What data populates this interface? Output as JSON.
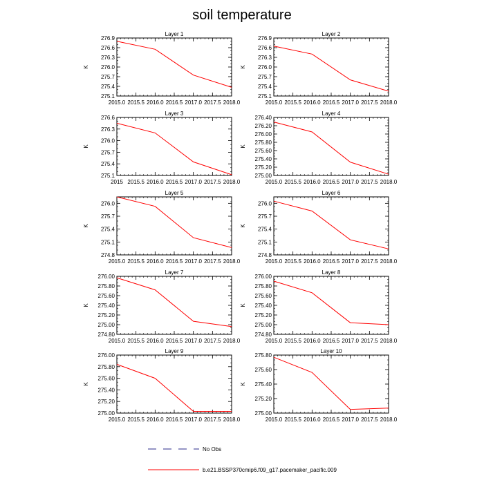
{
  "title": "soil temperature",
  "legend": {
    "obs_label": "No Obs",
    "model_label": "b.e21.BSSP370cmip6.f09_g17.pacemaker_pacific.009",
    "model_color": "#ff0000",
    "obs_color": "#2a2a8a"
  },
  "chart_data": [
    {
      "type": "line",
      "title": "Layer 1",
      "ylabel": "K",
      "x": [
        2015,
        2016,
        2017,
        2018
      ],
      "values": [
        276.8,
        276.55,
        275.75,
        275.37
      ],
      "xlim": [
        2015,
        2018
      ],
      "ylim": [
        275.1,
        276.9
      ],
      "xticks": [
        "2015.0",
        "2015.5",
        "2016.0",
        "2016.5",
        "2017.0",
        "2017.5",
        "2018.0"
      ],
      "yticks": [
        "276.9",
        "276.6",
        "276.3",
        "276.0",
        "275.7",
        "275.4",
        "275.1"
      ],
      "series_name": "b.e21.BSSP370cmip6.f09_g17.pacemaker_pacific.009"
    },
    {
      "type": "line",
      "title": "Layer 2",
      "ylabel": "K",
      "x": [
        2015,
        2016,
        2017,
        2018
      ],
      "values": [
        276.65,
        276.4,
        275.6,
        275.25
      ],
      "xlim": [
        2015,
        2018
      ],
      "ylim": [
        275.1,
        276.9
      ],
      "xticks": [
        "2015.0",
        "2015.5",
        "2016.0",
        "2016.5",
        "2017.0",
        "2017.5",
        "2018.0"
      ],
      "yticks": [
        "276.9",
        "276.6",
        "276.3",
        "276.0",
        "275.7",
        "275.4",
        "275.1"
      ],
      "series_name": "b.e21.BSSP370cmip6.f09_g17.pacemaker_pacific.009"
    },
    {
      "type": "line",
      "title": "Layer 3",
      "ylabel": "K",
      "x": [
        2015,
        2016,
        2017,
        2018
      ],
      "values": [
        276.45,
        276.2,
        275.45,
        275.12
      ],
      "xlim": [
        2015,
        2018
      ],
      "ylim": [
        275.1,
        276.6
      ],
      "xticks": [
        "2015",
        "2015.5",
        "2016.0",
        "2016.5",
        "2017.0",
        "2017.5",
        "2018.0"
      ],
      "yticks": [
        "276.6",
        "276.3",
        "276.0",
        "275.7",
        "275.4",
        "275.1"
      ],
      "series_name": "b.e21.BSSP370cmip6.f09_g17.pacemaker_pacific.009"
    },
    {
      "type": "line",
      "title": "Layer 4",
      "ylabel": "K",
      "x": [
        2015,
        2016,
        2017,
        2018
      ],
      "values": [
        276.29,
        276.05,
        275.32,
        275.03
      ],
      "xlim": [
        2015,
        2018
      ],
      "ylim": [
        275.0,
        276.4
      ],
      "xticks": [
        "2015.0",
        "2015.5",
        "2016.0",
        "2016.5",
        "2017.0",
        "2017.5",
        "2018.0"
      ],
      "yticks": [
        "276.40",
        "276.20",
        "276.00",
        "275.80",
        "275.60",
        "275.40",
        "275.20",
        "275.00"
      ],
      "series_name": "b.e21.BSSP370cmip6.f09_g17.pacemaker_pacific.009"
    },
    {
      "type": "line",
      "title": "Layer 5",
      "ylabel": "K",
      "x": [
        2015,
        2016,
        2017,
        2018
      ],
      "values": [
        276.15,
        275.93,
        275.2,
        274.97
      ],
      "xlim": [
        2015,
        2018
      ],
      "ylim": [
        274.8,
        276.15
      ],
      "xticks": [
        "2015.0",
        "2015.5",
        "2016.0",
        "2016.5",
        "2017.0",
        "2017.5",
        "2018.0"
      ],
      "yticks": [
        "276.0",
        "275.7",
        "275.4",
        "275.1",
        "274.8"
      ],
      "series_name": "b.e21.BSSP370cmip6.f09_g17.pacemaker_pacific.009"
    },
    {
      "type": "line",
      "title": "Layer 6",
      "ylabel": "K",
      "x": [
        2015,
        2016,
        2017,
        2018
      ],
      "values": [
        276.05,
        275.82,
        275.15,
        274.94
      ],
      "xlim": [
        2015,
        2018
      ],
      "ylim": [
        274.8,
        276.15
      ],
      "xticks": [
        "2015.0",
        "2015.5",
        "2016.0",
        "2016.5",
        "2017.0",
        "2017.5",
        "2018.0"
      ],
      "yticks": [
        "276.0",
        "275.7",
        "275.4",
        "275.1",
        "274.8"
      ],
      "series_name": "b.e21.BSSP370cmip6.f09_g17.pacemaker_pacific.009"
    },
    {
      "type": "line",
      "title": "Layer 7",
      "ylabel": "K",
      "x": [
        2015,
        2016,
        2017,
        2018
      ],
      "values": [
        275.97,
        275.72,
        275.07,
        274.96
      ],
      "xlim": [
        2015,
        2018
      ],
      "ylim": [
        274.8,
        276.0
      ],
      "xticks": [
        "2015.0",
        "2015.5",
        "2016.0",
        "2016.5",
        "2017.0",
        "2017.5",
        "2018.0"
      ],
      "yticks": [
        "276.00",
        "275.80",
        "275.60",
        "275.40",
        "275.20",
        "275.00",
        "274.80"
      ],
      "series_name": "b.e21.BSSP370cmip6.f09_g17.pacemaker_pacific.009"
    },
    {
      "type": "line",
      "title": "Layer 8",
      "ylabel": "K",
      "x": [
        2015,
        2016,
        2017,
        2018
      ],
      "values": [
        275.9,
        275.66,
        275.04,
        275.0
      ],
      "xlim": [
        2015,
        2018
      ],
      "ylim": [
        274.8,
        276.0
      ],
      "xticks": [
        "2015.0",
        "2015.5",
        "2016.0",
        "2016.5",
        "2017.0",
        "2017.5",
        "2018.0"
      ],
      "yticks": [
        "276.00",
        "275.80",
        "275.60",
        "275.40",
        "275.20",
        "275.00",
        "274.80"
      ],
      "series_name": "b.e21.BSSP370cmip6.f09_g17.pacemaker_pacific.009"
    },
    {
      "type": "line",
      "title": "Layer 9",
      "ylabel": "K",
      "x": [
        2015,
        2016,
        2017,
        2018
      ],
      "values": [
        275.84,
        275.6,
        275.03,
        275.03
      ],
      "xlim": [
        2015,
        2018
      ],
      "ylim": [
        275.0,
        276.0
      ],
      "xticks": [
        "2015.0",
        "2015.5",
        "2016.0",
        "2016.5",
        "2017.0",
        "2017.5",
        "2018.0"
      ],
      "yticks": [
        "276.00",
        "275.80",
        "275.60",
        "275.40",
        "275.20",
        "275.00"
      ],
      "series_name": "b.e21.BSSP370cmip6.f09_g17.pacemaker_pacific.009"
    },
    {
      "type": "line",
      "title": "Layer 10",
      "ylabel": "K",
      "x": [
        2015,
        2016,
        2017,
        2018
      ],
      "values": [
        275.77,
        275.56,
        275.05,
        275.07
      ],
      "xlim": [
        2015,
        2018
      ],
      "ylim": [
        275.0,
        275.8
      ],
      "xticks": [
        "2015.0",
        "2015.5",
        "2016.0",
        "2016.5",
        "2017.0",
        "2017.5",
        "2018.0"
      ],
      "yticks": [
        "275.80",
        "275.60",
        "275.40",
        "275.20",
        "275.00"
      ],
      "series_name": "b.e21.BSSP370cmip6.f09_g17.pacemaker_pacific.009"
    }
  ]
}
